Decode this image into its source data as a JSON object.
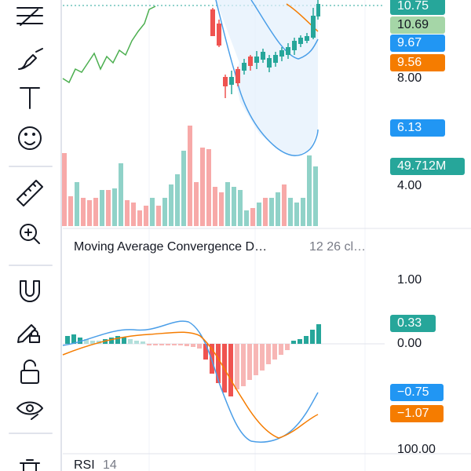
{
  "price_scale": {
    "last_price": "10.75",
    "prev_close": "10.69",
    "band_upper": "9.67",
    "ma": "9.56",
    "ticks": [
      "8.00",
      "4.00"
    ],
    "band_lower": "6.13",
    "volume": "49.712M"
  },
  "macd": {
    "title": "Moving Average Convergence D…",
    "params": "12 26 cl…",
    "ticks": [
      "1.00",
      "0.00"
    ],
    "histogram": "0.33",
    "macd_line": "−0.75",
    "signal_line": "−1.07"
  },
  "rsi": {
    "title": "RSI",
    "params": "14",
    "tick": "100.00"
  }
}
